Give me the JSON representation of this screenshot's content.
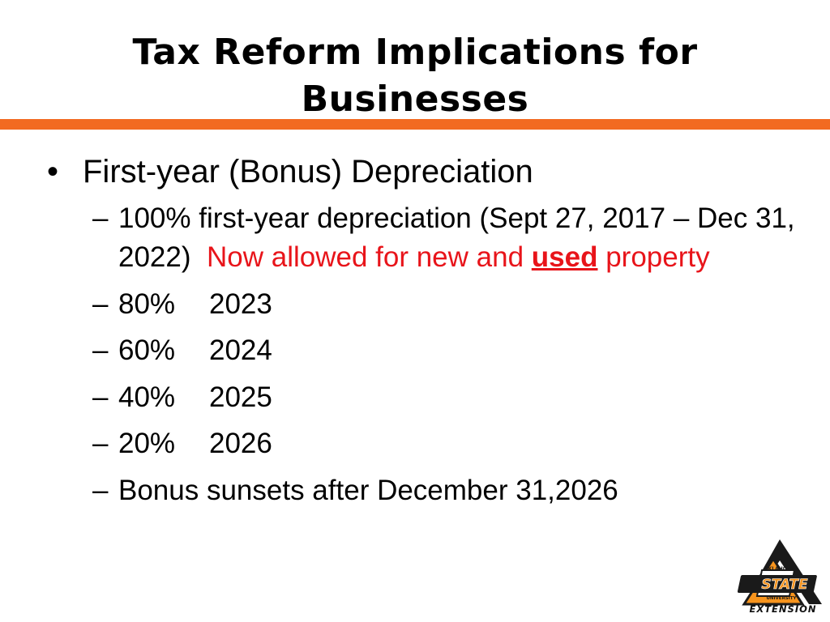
{
  "slide": {
    "title_line1": "Tax Reform Implications for",
    "title_line2": "Businesses",
    "accent_color": "#f26a21",
    "highlight_color": "#e8141a"
  },
  "bullets": {
    "main_marker": "•",
    "sub_marker": "–",
    "main": "First-year (Bonus) Depreciation",
    "sub1": {
      "text": "100% first-year depreciation (Sept 27, 2017 – Dec 31, 2022)",
      "highlight": "Now allowed for new and",
      "emphasis": "used",
      "highlight_end": "property"
    },
    "phase_down": [
      {
        "pct": "80%",
        "year": "2023"
      },
      {
        "pct": "60%",
        "year": "2024"
      },
      {
        "pct": "40%",
        "year": "2025"
      },
      {
        "pct": "20%",
        "year": "2026"
      }
    ],
    "sunset": "Bonus sunsets after December 31,2026"
  },
  "logo": {
    "top_text": "OKLAHOMA",
    "mid_text": "STATE",
    "bottom_text": "UNIVERSITY",
    "caption": "EXTENSION",
    "icon": "osu-extension-logo"
  }
}
